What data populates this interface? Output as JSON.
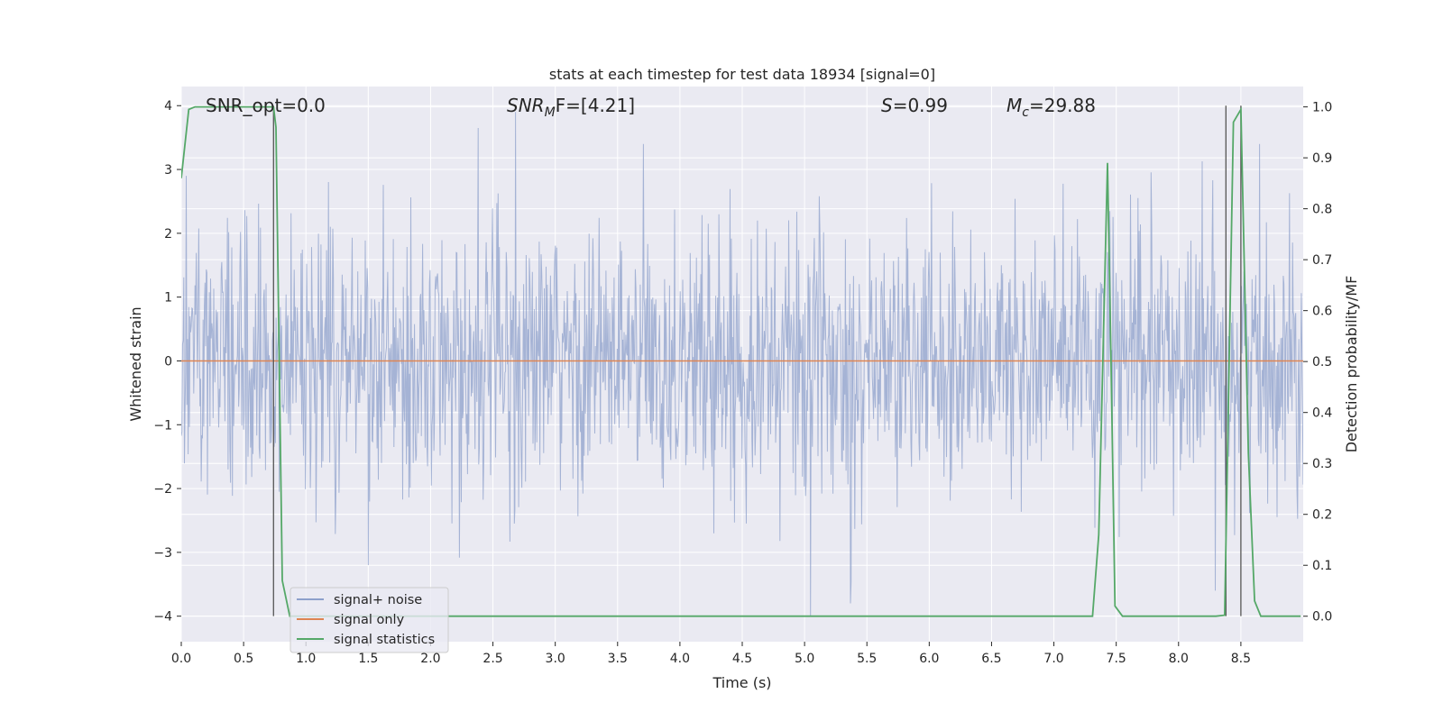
{
  "chart_data": {
    "type": "line",
    "title": "stats at each timestep for test data 18934 [signal=0]",
    "xlabel": "Time (s)",
    "ylabel_left": "Whitened strain",
    "ylabel_right": "Detection probability/MF",
    "xlim": [
      0.0,
      9.0
    ],
    "ylim_left": [
      -4.4,
      4.3
    ],
    "ylim_right": [
      -0.05,
      1.04
    ],
    "grid": true,
    "legend_position": "lower-left",
    "x_ticks": [
      "0.0",
      "0.5",
      "1.0",
      "1.5",
      "2.0",
      "2.5",
      "3.0",
      "3.5",
      "4.0",
      "4.5",
      "5.0",
      "5.5",
      "6.0",
      "6.5",
      "7.0",
      "7.5",
      "8.0",
      "8.5"
    ],
    "y_ticks_left": [
      "4",
      "3",
      "2",
      "1",
      "0",
      "−1",
      "−2",
      "−3",
      "−4"
    ],
    "y_ticks_right": [
      "1.0",
      "0.9",
      "0.8",
      "0.7",
      "0.6",
      "0.5",
      "0.4",
      "0.3",
      "0.2",
      "0.1",
      "0.0"
    ],
    "annotations": {
      "snr_opt": "SNR_opt=0.0",
      "snr_mf_sym": "SNR",
      "snr_mf_sub": "M",
      "snr_mf_rest": "F=[4.21]",
      "s_sym": "S",
      "s_rest": "=0.99",
      "mc_sym": "M",
      "mc_sub": "c",
      "mc_rest": "=29.88"
    },
    "series": [
      {
        "name": "signal+ noise",
        "color": "#8da0cb",
        "description_of_values": "stationary whitened noise, approx. range -4.0 to 3.9, std about 1",
        "notable_peaks": [
          {
            "x": 2.68,
            "y": 3.9
          },
          {
            "x": 2.38,
            "y": 3.65
          },
          {
            "x": 5.05,
            "y": -4.0
          },
          {
            "x": 5.37,
            "y": -3.8
          }
        ]
      },
      {
        "name": "signal only",
        "color": "#dd8452",
        "x": [
          0.0,
          9.0
        ],
        "y": [
          0.0,
          0.0
        ]
      },
      {
        "name": "signal statistics",
        "color": "#55a868",
        "axis": "right",
        "x": [
          0.0,
          0.06,
          0.11,
          0.2,
          0.5,
          0.68,
          0.74,
          0.76,
          0.81,
          0.87,
          1.0,
          2.0,
          4.0,
          6.0,
          7.0,
          7.31,
          7.36,
          7.43,
          7.46,
          7.49,
          7.55,
          7.6,
          8.0,
          8.3,
          8.37,
          8.44,
          8.5,
          8.56,
          8.61,
          8.66,
          8.75,
          8.98
        ],
        "y": [
          0.86,
          0.995,
          1.0,
          1.0,
          1.0,
          1.0,
          1.0,
          0.96,
          0.07,
          0.0,
          0.0,
          0.0,
          0.0,
          0.0,
          0.0,
          0.0,
          0.16,
          0.89,
          0.48,
          0.02,
          0.0,
          0.0,
          0.0,
          0.0,
          0.002,
          0.97,
          0.995,
          0.32,
          0.03,
          0.0,
          0.0,
          0.0
        ]
      }
    ],
    "vertical_markers": [
      {
        "x": 0.74,
        "y_from": -4.0,
        "y_to": 4.0
      },
      {
        "x": 8.38,
        "y_from": -4.0,
        "y_to": 4.0
      },
      {
        "x": 8.5,
        "y_from": -4.0,
        "y_to": 4.0
      }
    ],
    "colors": {
      "plot_background": "#eaeaf2",
      "grid": "#ffffff",
      "noise": "#8da0cb",
      "signal_only": "#dd8452",
      "statistics": "#55a868",
      "marker": "#555555"
    }
  }
}
